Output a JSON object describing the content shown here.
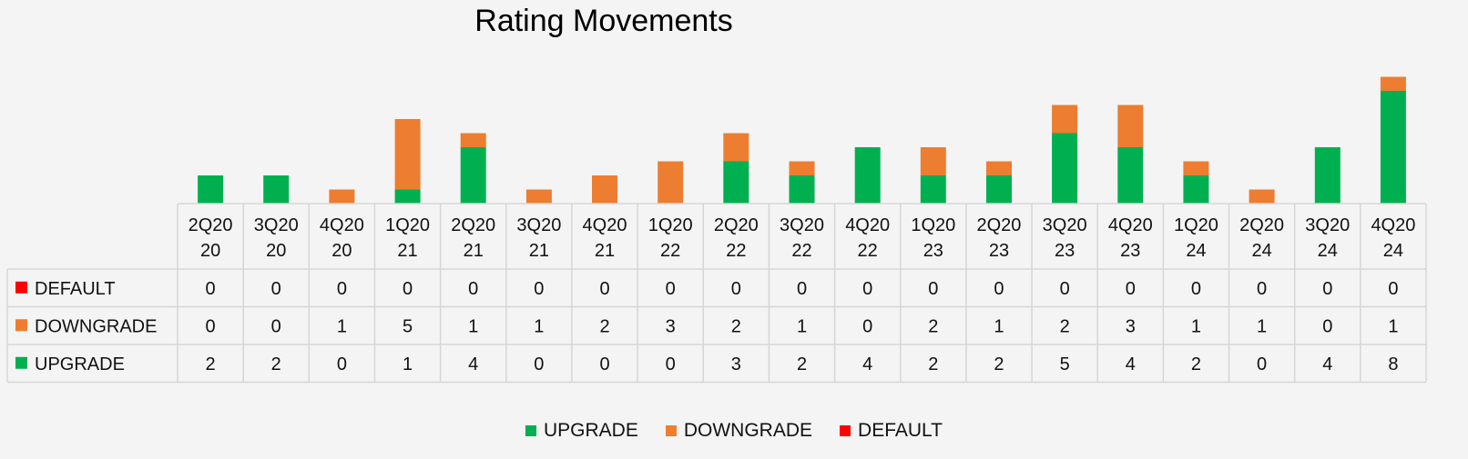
{
  "chart_data": {
    "type": "bar",
    "stacked": true,
    "title": "Rating Movements",
    "categories": [
      [
        "2Q20",
        "20"
      ],
      [
        "3Q20",
        "20"
      ],
      [
        "4Q20",
        "20"
      ],
      [
        "1Q20",
        "21"
      ],
      [
        "2Q20",
        "21"
      ],
      [
        "3Q20",
        "21"
      ],
      [
        "4Q20",
        "21"
      ],
      [
        "1Q20",
        "22"
      ],
      [
        "2Q20",
        "22"
      ],
      [
        "3Q20",
        "22"
      ],
      [
        "4Q20",
        "22"
      ],
      [
        "1Q20",
        "23"
      ],
      [
        "2Q20",
        "23"
      ],
      [
        "3Q20",
        "23"
      ],
      [
        "4Q20",
        "23"
      ],
      [
        "1Q20",
        "24"
      ],
      [
        "2Q20",
        "24"
      ],
      [
        "3Q20",
        "24"
      ],
      [
        "4Q20",
        "24"
      ]
    ],
    "series": [
      {
        "name": "DEFAULT",
        "color": "#ff0000",
        "values": [
          0,
          0,
          0,
          0,
          0,
          0,
          0,
          0,
          0,
          0,
          0,
          0,
          0,
          0,
          0,
          0,
          0,
          0,
          0
        ]
      },
      {
        "name": "DOWNGRADE",
        "color": "#ed7d31",
        "values": [
          0,
          0,
          1,
          5,
          1,
          1,
          2,
          3,
          2,
          1,
          0,
          2,
          1,
          2,
          3,
          1,
          1,
          0,
          1
        ]
      },
      {
        "name": "UPGRADE",
        "color": "#00b050",
        "values": [
          2,
          2,
          0,
          1,
          4,
          0,
          0,
          0,
          3,
          2,
          4,
          2,
          2,
          5,
          4,
          2,
          0,
          4,
          8
        ]
      }
    ],
    "stack_order": [
      "UPGRADE",
      "DOWNGRADE",
      "DEFAULT"
    ],
    "data_table": true,
    "legend_position": "bottom",
    "grid": false
  }
}
